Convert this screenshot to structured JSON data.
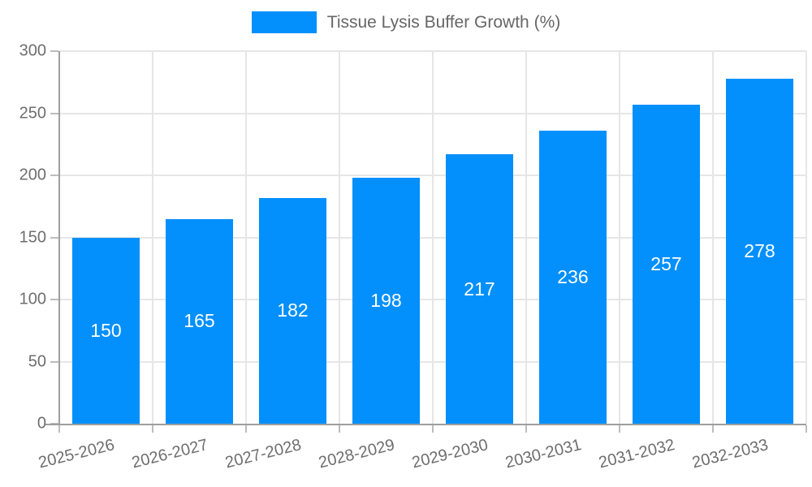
{
  "chart_data": {
    "type": "bar",
    "series_name": "Tissue Lysis Buffer Growth (%)",
    "categories": [
      "2025-2026",
      "2026-2027",
      "2027-2028",
      "2028-2029",
      "2029-2030",
      "2030-2031",
      "2031-2032",
      "2032-2033"
    ],
    "values": [
      150,
      165,
      182,
      198,
      217,
      236,
      257,
      278
    ],
    "bar_labels": [
      "150",
      "165",
      "182",
      "198",
      "217",
      "236",
      "257",
      "278"
    ],
    "title": "",
    "xlabel": "",
    "ylabel": "",
    "ylim": [
      0,
      300
    ],
    "yticks": [
      0,
      50,
      100,
      150,
      200,
      250,
      300
    ],
    "ytick_labels": [
      "0",
      "50",
      "100",
      "150",
      "200",
      "250",
      "300"
    ],
    "grid": true,
    "legend_position": "top",
    "bar_label_position": "inside-center",
    "colors": {
      "bar": "#0390fc",
      "bar_label_text": "#ffffff",
      "axis_line": "#9e9e9e",
      "gridline": "#e6e6e6",
      "tick": "#bdbdbd",
      "axis_text": "#6e6e6e",
      "legend_text": "#666666",
      "background": "#ffffff"
    }
  }
}
